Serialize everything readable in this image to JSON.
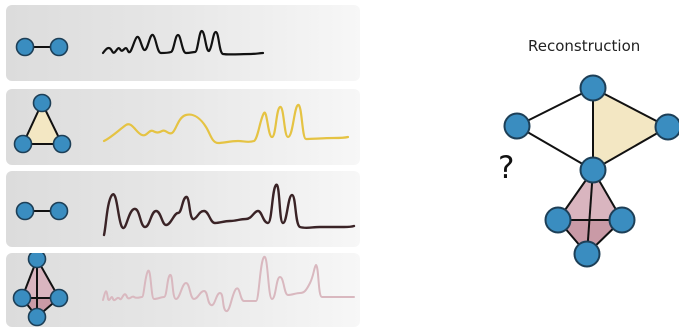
{
  "reconstruction": {
    "title": "Reconstruction",
    "unknown_marker": "?"
  },
  "colors": {
    "node_fill": "#3a8dc0",
    "node_stroke": "#1d3f57",
    "row_1_signal": "#111111",
    "row_2_signal": "#e5c343",
    "row_3_signal": "#3a2326",
    "row_4_signal": "#d9b8bf",
    "triangle_fill": "#f3e7c3",
    "tetrahedron_fill": "#d9b5bf"
  },
  "rows": [
    {
      "graph": "edge",
      "signal_color": "#111111"
    },
    {
      "graph": "triangle",
      "signal_color": "#e5c343"
    },
    {
      "graph": "edge",
      "signal_color": "#3a2326"
    },
    {
      "graph": "tetrahedron",
      "signal_color": "#d9b8bf"
    }
  ]
}
